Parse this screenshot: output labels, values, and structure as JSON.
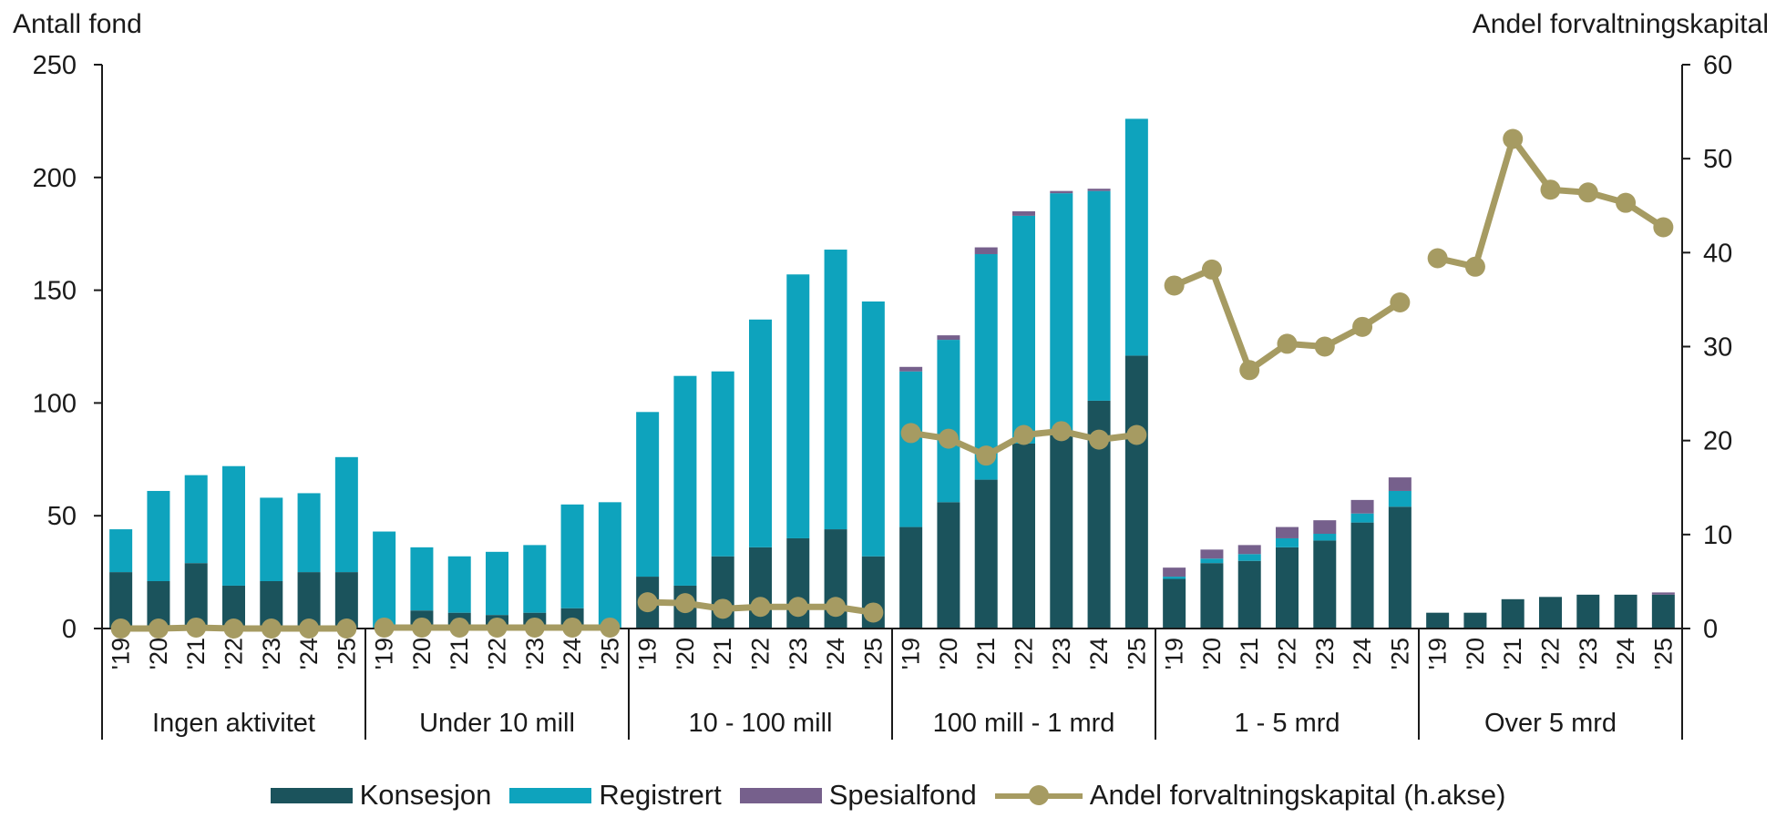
{
  "chart_data": {
    "type": "bar",
    "ylabel": "Antall fond",
    "y2label": "Andel forvaltningskapital",
    "ylim": [
      0,
      250
    ],
    "y2lim": [
      0,
      60
    ],
    "yticks": [
      0,
      50,
      100,
      150,
      200,
      250
    ],
    "y2ticks": [
      0,
      10,
      20,
      30,
      40,
      50,
      60
    ],
    "years": [
      "'19",
      "'20",
      "'21",
      "'22",
      "'23",
      "'24",
      "'25"
    ],
    "groups": [
      {
        "label": "Ingen aktivitet",
        "konsesjon": [
          25,
          21,
          29,
          19,
          21,
          25,
          25
        ],
        "registrert": [
          19,
          40,
          39,
          53,
          37,
          35,
          51
        ],
        "spesialfond": [
          0,
          0,
          0,
          0,
          0,
          0,
          0
        ],
        "andel": [
          0,
          0,
          0.1,
          0,
          0,
          0,
          0
        ]
      },
      {
        "label": "Under 10 mill",
        "konsesjon": [
          0,
          8,
          7,
          6,
          7,
          9,
          0
        ],
        "registrert": [
          43,
          28,
          25,
          28,
          30,
          46,
          56
        ],
        "spesialfond": [
          0,
          0,
          0,
          0,
          0,
          0,
          0
        ],
        "andel": [
          0.1,
          0.1,
          0.1,
          0.1,
          0.1,
          0.1,
          0.1
        ]
      },
      {
        "label": "10 - 100 mill",
        "konsesjon": [
          23,
          19,
          32,
          36,
          40,
          44,
          32
        ],
        "registrert": [
          73,
          93,
          82,
          101,
          117,
          124,
          113
        ],
        "spesialfond": [
          0,
          0,
          0,
          0,
          0,
          0,
          0
        ],
        "andel": [
          2.8,
          2.7,
          2.1,
          2.3,
          2.3,
          2.3,
          1.7
        ]
      },
      {
        "label": "100 mill - 1 mrd",
        "konsesjon": [
          45,
          56,
          66,
          82,
          88,
          101,
          121
        ],
        "registrert": [
          69,
          72,
          100,
          101,
          105,
          93,
          105
        ],
        "spesialfond": [
          2,
          2,
          3,
          2,
          1,
          1,
          0
        ],
        "andel": [
          20.8,
          20.2,
          18.4,
          20.6,
          21.0,
          20.1,
          20.6
        ]
      },
      {
        "label": "1 - 5 mrd",
        "konsesjon": [
          22,
          29,
          30,
          36,
          39,
          47,
          54
        ],
        "registrert": [
          1,
          2,
          3,
          4,
          3,
          4,
          7
        ],
        "spesialfond": [
          4,
          4,
          4,
          5,
          6,
          6,
          6
        ],
        "andel": [
          36.5,
          38.2,
          27.5,
          30.3,
          30.0,
          32.1,
          34.7
        ]
      },
      {
        "label": "Over 5 mrd",
        "konsesjon": [
          7,
          7,
          13,
          14,
          15,
          15,
          15
        ],
        "registrert": [
          0,
          0,
          0,
          0,
          0,
          0,
          0
        ],
        "spesialfond": [
          0,
          0,
          0,
          0,
          0,
          0,
          1
        ],
        "andel": [
          39.4,
          38.5,
          52.1,
          46.7,
          46.4,
          45.3,
          42.7
        ]
      }
    ],
    "series": [
      {
        "name": "Konsesjon",
        "color": "#1b535c"
      },
      {
        "name": "Registrert",
        "color": "#0ea3bd"
      },
      {
        "name": "Spesialfond",
        "color": "#76608c"
      },
      {
        "name": "Andel forvaltningskapital (h.akse)",
        "color": "#a69b62"
      }
    ],
    "legend_position": "bottom",
    "grid": false
  }
}
